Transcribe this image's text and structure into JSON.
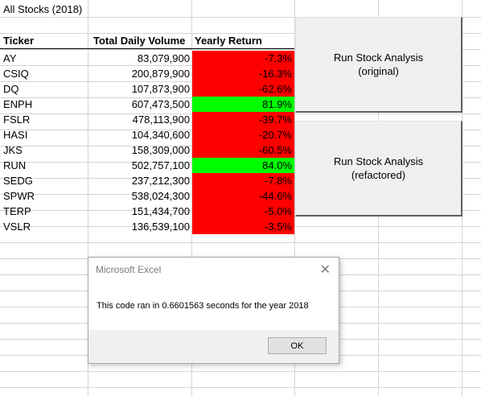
{
  "sheet": {
    "title": "All Stocks (2018)",
    "headers": {
      "ticker": "Ticker",
      "volume": "Total Daily Volume",
      "return": "Yearly Return"
    },
    "rows": [
      {
        "ticker": "AY",
        "volume": "83,079,900",
        "return": "-7.3%",
        "status": "negative"
      },
      {
        "ticker": "CSIQ",
        "volume": "200,879,900",
        "return": "-16.3%",
        "status": "negative"
      },
      {
        "ticker": "DQ",
        "volume": "107,873,900",
        "return": "-62.6%",
        "status": "negative"
      },
      {
        "ticker": "ENPH",
        "volume": "607,473,500",
        "return": "81.9%",
        "status": "positive"
      },
      {
        "ticker": "FSLR",
        "volume": "478,113,900",
        "return": "-39.7%",
        "status": "negative"
      },
      {
        "ticker": "HASI",
        "volume": "104,340,600",
        "return": "-20.7%",
        "status": "negative"
      },
      {
        "ticker": "JKS",
        "volume": "158,309,000",
        "return": "-60.5%",
        "status": "negative"
      },
      {
        "ticker": "RUN",
        "volume": "502,757,100",
        "return": "84.0%",
        "status": "positive"
      },
      {
        "ticker": "SEDG",
        "volume": "237,212,300",
        "return": "-7.8%",
        "status": "negative"
      },
      {
        "ticker": "SPWR",
        "volume": "538,024,300",
        "return": "-44.6%",
        "status": "negative"
      },
      {
        "ticker": "TERP",
        "volume": "151,434,700",
        "return": "-5.0%",
        "status": "negative"
      },
      {
        "ticker": "VSLR",
        "volume": "136,539,100",
        "return": "-3.5%",
        "status": "negative"
      }
    ],
    "colors": {
      "negative": "#ff0000",
      "positive": "#00ff00"
    }
  },
  "buttons": {
    "original": {
      "line1": "Run Stock Analysis",
      "line2": "(original)"
    },
    "refactored": {
      "line1": "Run Stock Analysis",
      "line2": "(refactored)"
    }
  },
  "dialog": {
    "title": "Microsoft Excel",
    "message": "This code ran in 0.6601563 seconds for the year 2018",
    "ok_label": "OK",
    "close_icon": "close-icon"
  }
}
